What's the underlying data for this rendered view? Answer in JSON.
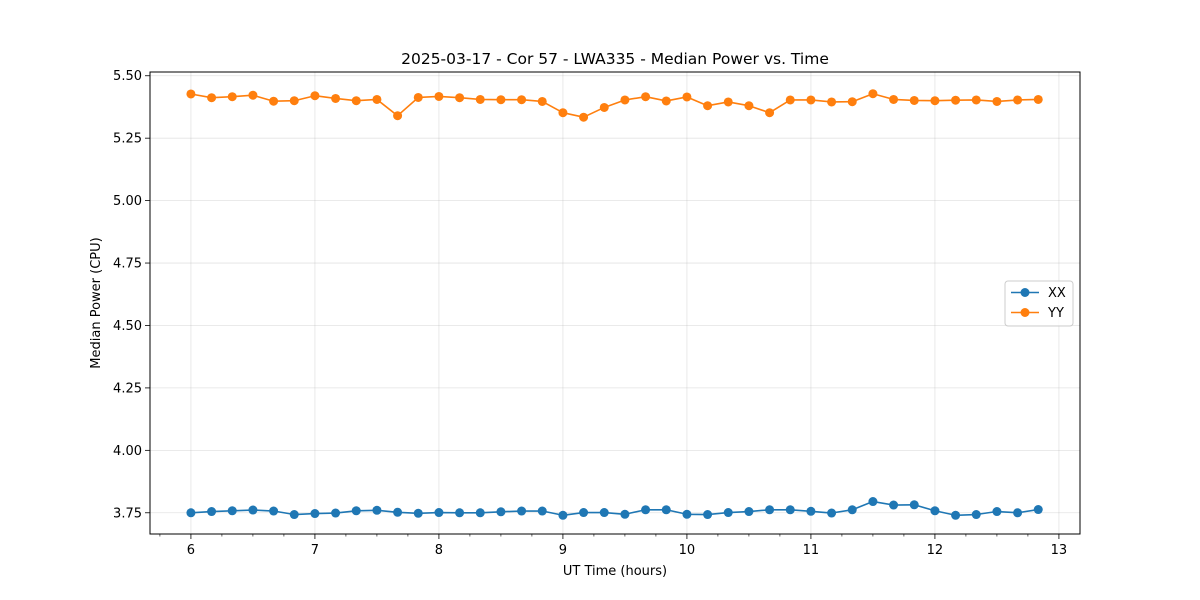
{
  "chart_data": {
    "type": "line",
    "title": "2025-03-17 - Cor 57 - LWA335 - Median Power vs. Time",
    "xlabel": "UT Time (hours)",
    "ylabel": "Median Power (CPU)",
    "xlim": [
      5.67,
      13.17
    ],
    "ylim": [
      3.665,
      5.515
    ],
    "xticks": [
      6,
      7,
      8,
      9,
      10,
      11,
      12,
      13
    ],
    "xtick_labels": [
      "6",
      "7",
      "8",
      "9",
      "10",
      "11",
      "12",
      "13"
    ],
    "yticks": [
      3.75,
      4.0,
      4.25,
      4.5,
      4.75,
      5.0,
      5.25,
      5.5
    ],
    "ytick_labels": [
      "3.75",
      "4.00",
      "4.25",
      "4.50",
      "4.75",
      "5.00",
      "5.25",
      "5.50"
    ],
    "grid": true,
    "legend_position": "center-right",
    "x": [
      6.0,
      6.1667,
      6.3333,
      6.5,
      6.6667,
      6.8333,
      7.0,
      7.1667,
      7.3333,
      7.5,
      7.6667,
      7.8333,
      8.0,
      8.1667,
      8.3333,
      8.5,
      8.6667,
      8.8333,
      9.0,
      9.1667,
      9.3333,
      9.5,
      9.6667,
      9.8333,
      10.0,
      10.1667,
      10.3333,
      10.5,
      10.6667,
      10.8333,
      11.0,
      11.1667,
      11.3333,
      11.5,
      11.6667,
      11.8333,
      12.0,
      12.1667,
      12.3333,
      12.5,
      12.6667,
      12.8333
    ],
    "series": [
      {
        "name": "XX",
        "color": "#1f77b4",
        "values": [
          3.75,
          3.755,
          3.758,
          3.761,
          3.757,
          3.743,
          3.747,
          3.749,
          3.758,
          3.76,
          3.752,
          3.748,
          3.751,
          3.75,
          3.75,
          3.754,
          3.757,
          3.757,
          3.74,
          3.751,
          3.751,
          3.744,
          3.762,
          3.762,
          3.744,
          3.743,
          3.751,
          3.755,
          3.762,
          3.762,
          3.756,
          3.749,
          3.762,
          3.795,
          3.781,
          3.782,
          3.758,
          3.74,
          3.743,
          3.755,
          3.75,
          3.763
        ]
      },
      {
        "name": "YY",
        "color": "#ff7f0e",
        "values": [
          5.427,
          5.412,
          5.416,
          5.422,
          5.398,
          5.4,
          5.42,
          5.409,
          5.4,
          5.405,
          5.34,
          5.413,
          5.417,
          5.412,
          5.405,
          5.404,
          5.404,
          5.397,
          5.352,
          5.334,
          5.373,
          5.403,
          5.416,
          5.399,
          5.415,
          5.38,
          5.395,
          5.38,
          5.352,
          5.403,
          5.403,
          5.395,
          5.396,
          5.428,
          5.405,
          5.401,
          5.4,
          5.402,
          5.403,
          5.397,
          5.403,
          5.405
        ]
      }
    ]
  }
}
